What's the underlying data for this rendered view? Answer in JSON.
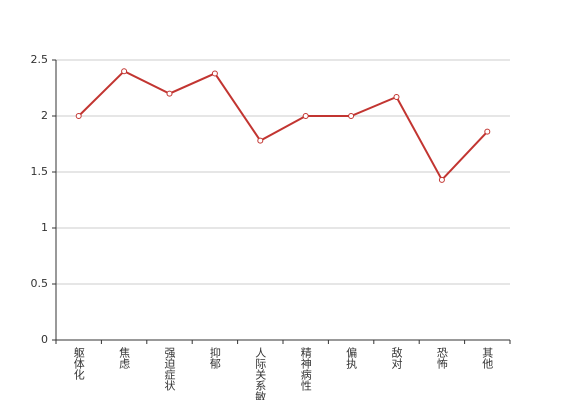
{
  "chart_data": {
    "type": "line",
    "categories": [
      "躯体化",
      "焦虑",
      "强迫症状",
      "抑郁",
      "人际关系敏感",
      "精神病性",
      "偏执",
      "敌对",
      "恐怖",
      "其他"
    ],
    "series": [
      {
        "color": "#c23531",
        "values": [
          2.0,
          2.4,
          2.2,
          2.38,
          1.78,
          2.0,
          2.0,
          2.17,
          1.43,
          1.86
        ]
      }
    ],
    "ylim": [
      0,
      2.5
    ],
    "yticks": [
      0,
      0.5,
      1,
      1.5,
      2,
      2.5
    ],
    "grid": true
  }
}
